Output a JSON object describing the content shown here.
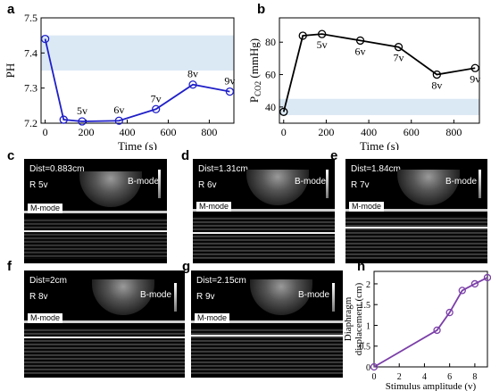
{
  "panels": {
    "a": {
      "label": "a"
    },
    "b": {
      "label": "b"
    },
    "c": {
      "label": "c",
      "dist": "Dist=0.883cm",
      "stim": "R  5v",
      "bmode": "B-mode",
      "mmode": "M-mode"
    },
    "d": {
      "label": "d",
      "dist": "Dist=1.31cm",
      "stim": "R  6v",
      "bmode": "B-mode",
      "mmode": "M-mode"
    },
    "e": {
      "label": "e",
      "dist": "Dist=1.84cm",
      "stim": "R  7v",
      "bmode": "B-mode",
      "mmode": "M-mode"
    },
    "f": {
      "label": "f",
      "dist": "Dist=2cm",
      "stim": "R  8v",
      "bmode": "B-mode",
      "mmode": "M-mode"
    },
    "g": {
      "label": "g",
      "dist": "Dist=2.15cm",
      "stim": "R  9v",
      "bmode": "B-mode",
      "mmode": "M-mode"
    },
    "h": {
      "label": "h"
    }
  },
  "chart_data": [
    {
      "type": "line",
      "panel": "a",
      "title": "",
      "xlabel": "Time (s)",
      "ylabel": "PH",
      "xlim": [
        -20,
        920
      ],
      "ylim": [
        7.2,
        7.5
      ],
      "xticks": [
        "0",
        "200",
        "400",
        "600",
        "800"
      ],
      "yticks": [
        "7.2",
        "7.3",
        "7.4",
        "7.5"
      ],
      "normal_band": [
        7.35,
        7.45
      ],
      "band_color": "#dbe9f5",
      "line_color": "#1f1fc8",
      "x": [
        0,
        90,
        180,
        360,
        540,
        720,
        900
      ],
      "y": [
        7.44,
        7.21,
        7.205,
        7.207,
        7.24,
        7.31,
        7.29
      ],
      "point_labels": [
        "",
        "",
        "5v",
        "6v",
        "7v",
        "8v",
        "9v"
      ]
    },
    {
      "type": "line",
      "panel": "b",
      "title": "",
      "xlabel": "Time (s)",
      "ylabel_main": "P",
      "ylabel_sub": "CO2",
      "ylabel_unit": " (mmHg)",
      "xlim": [
        -20,
        920
      ],
      "ylim": [
        30,
        95
      ],
      "xticks": [
        "0",
        "200",
        "400",
        "600",
        "800"
      ],
      "yticks": [
        "40",
        "60",
        "80"
      ],
      "normal_band": [
        35,
        45
      ],
      "band_color": "#dbe9f5",
      "line_color": "#000000",
      "x": [
        0,
        90,
        180,
        360,
        540,
        720,
        900
      ],
      "y": [
        37,
        84,
        85,
        81,
        77,
        60,
        64
      ],
      "point_labels": [
        "",
        "",
        "5v",
        "6v",
        "7v",
        "8v",
        "9v"
      ]
    },
    {
      "type": "line",
      "panel": "h",
      "title": "",
      "xlabel": "Stimulus amplitude (v)",
      "ylabel": "Diaphragm displacement (cm)",
      "ylabel_lines": [
        "Diaphragm",
        "displacement (cm)"
      ],
      "xlim": [
        0,
        9
      ],
      "ylim": [
        0,
        2.3
      ],
      "xticks": [
        "0",
        "2",
        "4",
        "6",
        "8"
      ],
      "yticks": [
        "0",
        "0.5",
        "1",
        "1.5",
        "2"
      ],
      "line_color": "#7b3fa8",
      "x": [
        0,
        5,
        6,
        7,
        8,
        9
      ],
      "y": [
        0,
        0.883,
        1.31,
        1.84,
        2.0,
        2.15
      ]
    }
  ]
}
